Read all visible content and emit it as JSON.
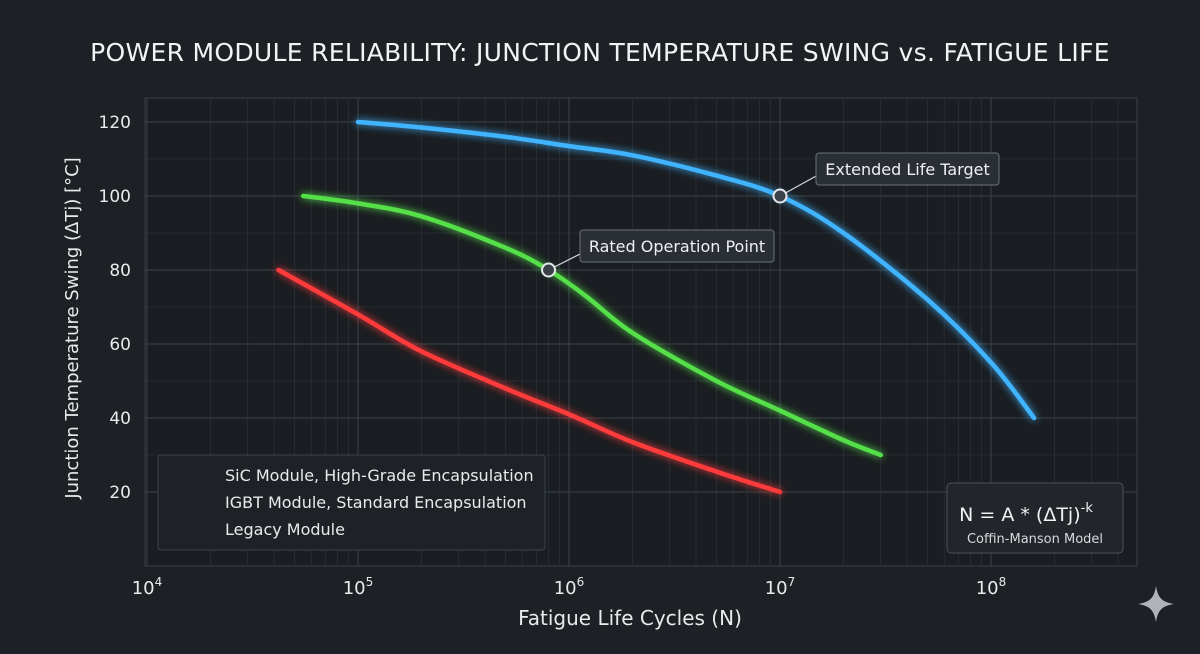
{
  "chart_data": {
    "type": "line",
    "title": "POWER MODULE RELIABILITY: JUNCTION TEMPERATURE SWING vs. FATIGUE LIFE",
    "xlabel": "Fatigue Life Cycles (N)",
    "ylabel": "Junction Temperature Swing (ΔTj) [°C]",
    "x_scale": "log",
    "xlim": [
      10000,
      150000000
    ],
    "ylim": [
      13,
      125
    ],
    "x_ticks": [
      {
        "value": 10000,
        "base": "10",
        "exp": "4"
      },
      {
        "value": 100000,
        "base": "10",
        "exp": "5"
      },
      {
        "value": 1000000,
        "base": "10",
        "exp": "6"
      },
      {
        "value": 10000000,
        "base": "10",
        "exp": "7"
      },
      {
        "value": 100000000,
        "base": "10",
        "exp": "8"
      }
    ],
    "y_ticks": [
      20,
      40,
      60,
      80,
      100,
      120
    ],
    "grid": true,
    "legend_position": "bottom-left",
    "series": [
      {
        "name": "SiC Module, High-Grade Encapsulation",
        "color": "#3fb4ff",
        "x": [
          100000,
          200000,
          500000,
          1000000,
          2000000,
          5000000,
          10000000,
          20000000,
          50000000,
          100000000,
          160000000
        ],
        "y": [
          120,
          118.5,
          116,
          113.5,
          111,
          105.5,
          100,
          90,
          72,
          55,
          40
        ]
      },
      {
        "name": "IGBT Module, Standard Encapsulation",
        "color": "#55e04a",
        "x": [
          55000,
          100000,
          200000,
          500000,
          800000,
          1200000,
          2000000,
          5000000,
          10000000,
          20000000,
          30000000
        ],
        "y": [
          100,
          98,
          94.5,
          86,
          80,
          73,
          63,
          50,
          42,
          34,
          30
        ]
      },
      {
        "name": "Legacy Module",
        "color": "#ff3b3b",
        "x": [
          42000,
          100000,
          200000,
          500000,
          1000000,
          2000000,
          5000000,
          10000000
        ],
        "y": [
          80,
          68,
          58,
          48,
          41,
          33.5,
          25.5,
          20
        ]
      }
    ],
    "annotations": [
      {
        "label": "Extended Life Target",
        "x": 10000000,
        "y": 100
      },
      {
        "label": "Rated Operation Point",
        "x": 800000,
        "y": 80
      }
    ],
    "formula": {
      "text": "N = A * (ΔTj)",
      "sup": "-k",
      "caption": "Coffin-Manson Model"
    }
  }
}
